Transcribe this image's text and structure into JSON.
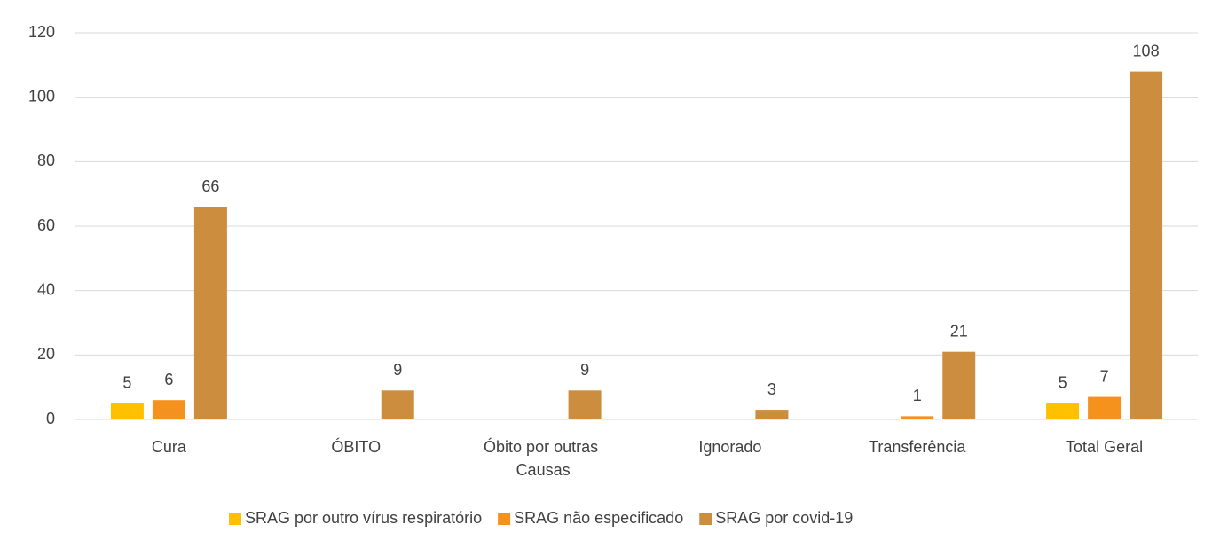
{
  "chart_data": {
    "type": "bar",
    "categories": [
      "Cura",
      "ÓBITO",
      "Óbito por outras Causas",
      "Ignorado",
      "Transferência",
      "Total Geral"
    ],
    "series": [
      {
        "name": "SRAG por outro vírus respiratório",
        "color": "#ffc000",
        "values": [
          5,
          null,
          null,
          null,
          null,
          5
        ]
      },
      {
        "name": "SRAG não especificado",
        "color": "#f5921e",
        "values": [
          6,
          null,
          null,
          null,
          1,
          7
        ]
      },
      {
        "name": "SRAG por covid-19",
        "color": "#cd8d3e",
        "values": [
          66,
          9,
          9,
          3,
          21,
          108
        ]
      }
    ],
    "ylim": [
      0,
      120
    ],
    "yticks": [
      0,
      20,
      40,
      60,
      80,
      100,
      120
    ],
    "grid": true,
    "legend": "bottom"
  }
}
